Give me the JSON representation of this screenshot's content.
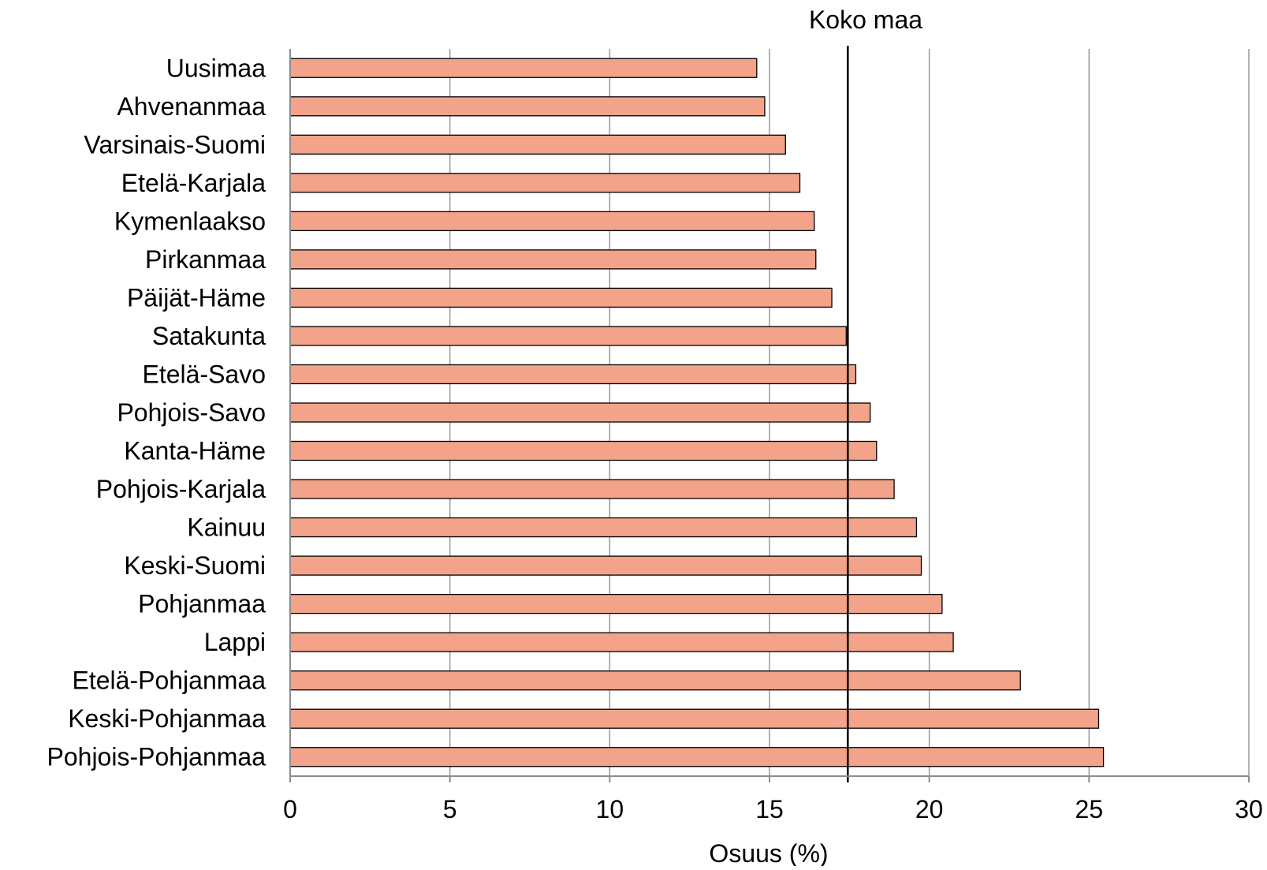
{
  "chart_data": {
    "type": "bar",
    "orientation": "horizontal",
    "title": "",
    "xlabel": "Osuus (%)",
    "ylabel": "",
    "xlim": [
      0,
      30
    ],
    "xticks": [
      "0",
      "5",
      "10",
      "15",
      "20",
      "25",
      "30"
    ],
    "grid": true,
    "legend": "none",
    "categories": [
      "Uusimaa",
      "Ahvenanmaa",
      "Varsinais-Suomi",
      "Etelä-Karjala",
      "Kymenlaakso",
      "Pirkanmaa",
      "Päijät-Häme",
      "Satakunta",
      "Etelä-Savo",
      "Pohjois-Savo",
      "Kanta-Häme",
      "Pohjois-Karjala",
      "Kainuu",
      "Keski-Suomi",
      "Pohjanmaa",
      "Lappi",
      "Etelä-Pohjanmaa",
      "Keski-Pohjanmaa",
      "Pohjois-Pohjanmaa"
    ],
    "values": [
      14.6,
      14.85,
      15.5,
      15.95,
      16.4,
      16.45,
      16.95,
      17.4,
      17.7,
      18.15,
      18.35,
      18.9,
      19.6,
      19.75,
      20.4,
      20.75,
      22.85,
      25.3,
      25.45
    ],
    "reference_line": {
      "label": "Koko maa",
      "value": 17.45
    },
    "colors": {
      "bar_fill": "#F2A38A",
      "bar_stroke": "#000000",
      "grid": "#9A9A9A",
      "axis": "#8C8C8C",
      "reference": "#000000"
    }
  }
}
